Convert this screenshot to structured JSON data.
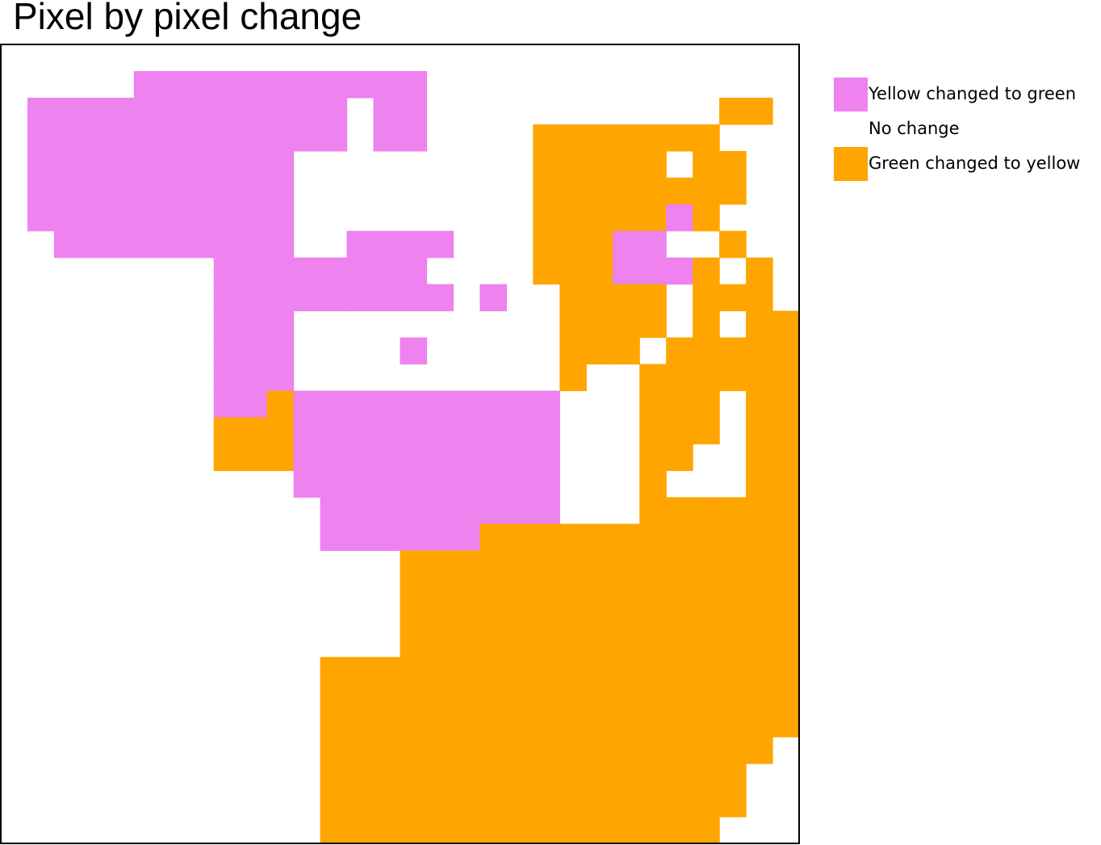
{
  "chart_data": {
    "type": "heatmap",
    "title": "Pixel by pixel change",
    "xlabel": "",
    "ylabel": "",
    "grid": false,
    "legend_position": "right",
    "legend": [
      {
        "code": "G",
        "label": "Yellow changed to green",
        "color": "#ee82ee"
      },
      {
        "code": ".",
        "label": "No change",
        "color": "#ffffff"
      },
      {
        "code": "Y",
        "label": "Green changed to yellow",
        "color": "#ffa500"
      }
    ],
    "rows": 30,
    "cols": 30,
    "values": [
      "..............................",
      ".....GGGGGGGGGGG..............",
      ".GGGGGGGGGGGG.GG...........YY.",
      ".GGGGGGGGGGGG.GG....YYYYYYY...",
      ".GGGGGGGGGG.........YYYYY.YY..",
      ".GGGGGGGGGG.........YYYYYYYY..",
      ".GGGGGGGGGG.........YYYYYGY...",
      "..GGGGGGGGG..GGGG...YYYGG..Y..",
      "........GGGGGGGG....YYYGGGY.Y.",
      "........GGGGGGGGG.G..YYYY.YYY.",
      "........GGG..........YYYY.Y.YY",
      "........GGG....G.....YYY.YYYYY",
      "........GGG..........Y..YYYYYY",
      "........GGYGGGGGGGGGG...YYY.YY",
      "........YYYGGGGGGGGGG...YYY.YY",
      "........YYYGGGGGGGGGG...YY..YY",
      "...........GGGGGGGGGG...Y...YY",
      "............GGGGGGGGG...YYYYYY",
      "............GGGGGGYYYYYYYYYYYY",
      "...............YYYYYYYYYYYYYYY",
      "...............YYYYYYYYYYYYYYY",
      "...............YYYYYYYYYYYYYYY",
      "...............YYYYYYYYYYYYYYY",
      "............YYYYYYYYYYYYYYYYYY",
      "............YYYYYYYYYYYYYYYYYY",
      "............YYYYYYYYYYYYYYYYYY",
      "............YYYYYYYYYYYYYYYYY.",
      "............YYYYYYYYYYYYYYYY..",
      "............YYYYYYYYYYYYYYYY..",
      "............YYYYYYYYYYYYYYY..."
    ]
  }
}
